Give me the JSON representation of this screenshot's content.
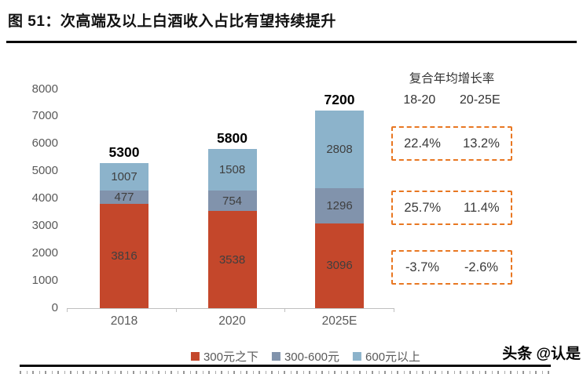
{
  "figure": {
    "title": "图 51：次高端及以上白酒收入占比有望持续提升",
    "watermark": "头条 @认是"
  },
  "chart_data": {
    "type": "bar",
    "stacked": true,
    "title": "图 51：次高端及以上白酒收入占比有望持续提升",
    "categories": [
      "2018",
      "2020",
      "2025E"
    ],
    "series": [
      {
        "name": "300元之下",
        "color": "#c4472b",
        "values": [
          3816,
          3538,
          3096
        ]
      },
      {
        "name": "300-600元",
        "color": "#8193ac",
        "values": [
          477,
          754,
          1296
        ]
      },
      {
        "name": "600元以上",
        "color": "#8cb3cb",
        "values": [
          1007,
          1508,
          2808
        ]
      }
    ],
    "totals": [
      5300,
      5800,
      7200
    ],
    "xlabel": "",
    "ylabel": "",
    "ylim": [
      0,
      8000
    ],
    "ytick_step": 1000,
    "grid": false,
    "legend_position": "bottom"
  },
  "cagr_panel": {
    "title": "复合年均增长率",
    "columns": [
      "18-20",
      "20-25E"
    ],
    "rows": [
      {
        "values": [
          "22.4%",
          "13.2%"
        ]
      },
      {
        "values": [
          "25.7%",
          "11.4%"
        ]
      },
      {
        "values": [
          "-3.7%",
          "-2.6%"
        ]
      }
    ],
    "box_border_color": "#e87722"
  },
  "colors": {
    "axis_line": "#bfbfbf",
    "axis_text": "#595959",
    "segment_label": "#3f3f3f",
    "total_label": "#000000",
    "title_rule": "#0a0a0a",
    "accent_orange": "#e87722"
  }
}
